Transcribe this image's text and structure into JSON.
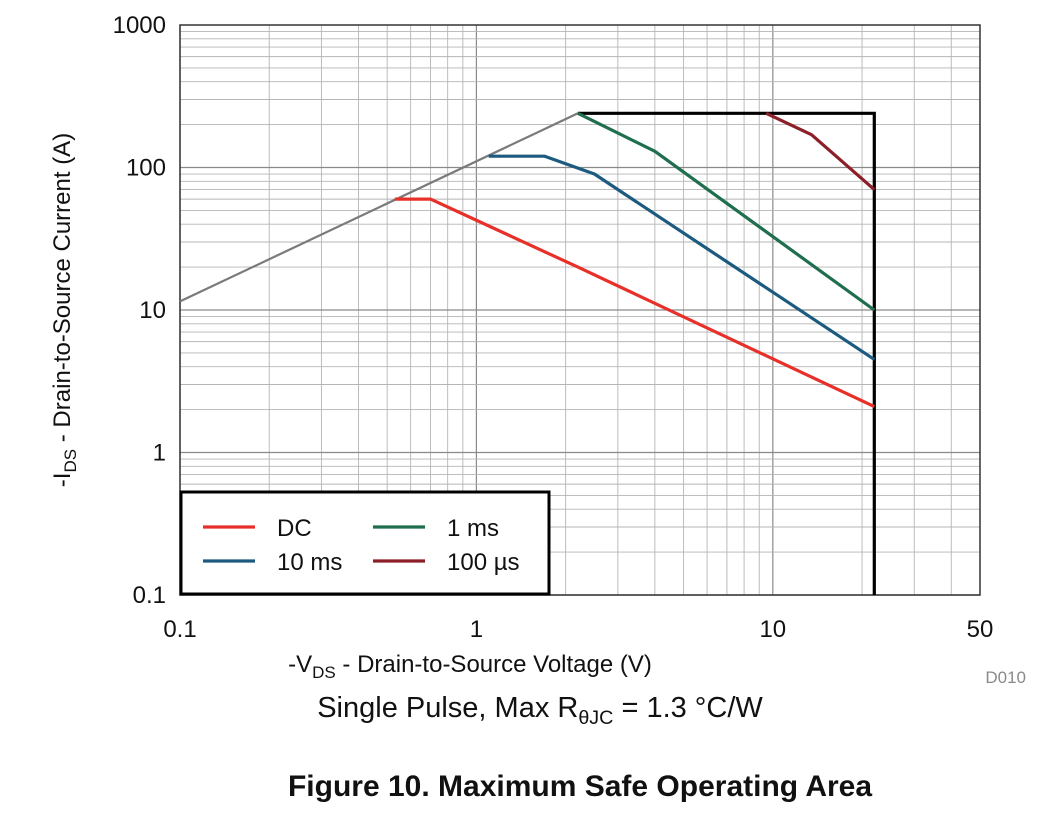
{
  "figure": {
    "caption": "Figure 10. Maximum Safe Operating Area",
    "note_prefix": "Single Pulse, Max R",
    "note_sub": "θJC",
    "note_suffix": " = 1.3 °C/W",
    "code": "D010"
  },
  "chart_data": {
    "type": "line",
    "title": "",
    "xlabel": {
      "prefix": "-V",
      "sub": "DS",
      "suffix": " - Drain-to-Source Voltage (V)"
    },
    "ylabel": {
      "prefix": "-I",
      "sub": "DS",
      "suffix": " - Drain-to-Source Current (A)"
    },
    "x_scale": "log",
    "y_scale": "log",
    "xlim": [
      0.1,
      50
    ],
    "ylim": [
      0.1,
      1000
    ],
    "x_ticks": [
      {
        "value": 0.1,
        "label": "0.1"
      },
      {
        "value": 1,
        "label": "1"
      },
      {
        "value": 10,
        "label": "10"
      },
      {
        "value": 50,
        "label": "50"
      }
    ],
    "y_ticks": [
      {
        "value": 0.1,
        "label": "0.1"
      },
      {
        "value": 1,
        "label": "1"
      },
      {
        "value": 10,
        "label": "10"
      },
      {
        "value": 100,
        "label": "100"
      },
      {
        "value": 1000,
        "label": "1000"
      }
    ],
    "grid": true,
    "legend_position": "bottom-left",
    "legend_columns": 2,
    "rds_on_limit": {
      "color": "#7a7a7a",
      "points": [
        [
          0.1,
          11.5
        ],
        [
          2.2,
          240
        ]
      ]
    },
    "boundary": {
      "color": "#000000",
      "points": [
        [
          2.2,
          240
        ],
        [
          22,
          240
        ],
        [
          22,
          0.1
        ]
      ]
    },
    "series": [
      {
        "name": "DC",
        "color": "#e8302a",
        "points": [
          [
            0.53,
            60
          ],
          [
            0.7,
            60
          ],
          [
            2.2,
            20
          ],
          [
            22,
            2.1
          ]
        ]
      },
      {
        "name": "1 ms",
        "color": "#1f6e4e",
        "points": [
          [
            2.2,
            240
          ],
          [
            4,
            130
          ],
          [
            22,
            10
          ]
        ]
      },
      {
        "name": "10 ms",
        "color": "#1c5a80",
        "points": [
          [
            1.1,
            120
          ],
          [
            1.7,
            120
          ],
          [
            2.5,
            90
          ],
          [
            22,
            4.5
          ]
        ]
      },
      {
        "name": "100 µs",
        "color": "#8c1f28",
        "points": [
          [
            9.5,
            240
          ],
          [
            13.5,
            170
          ],
          [
            22,
            70
          ]
        ]
      }
    ]
  }
}
